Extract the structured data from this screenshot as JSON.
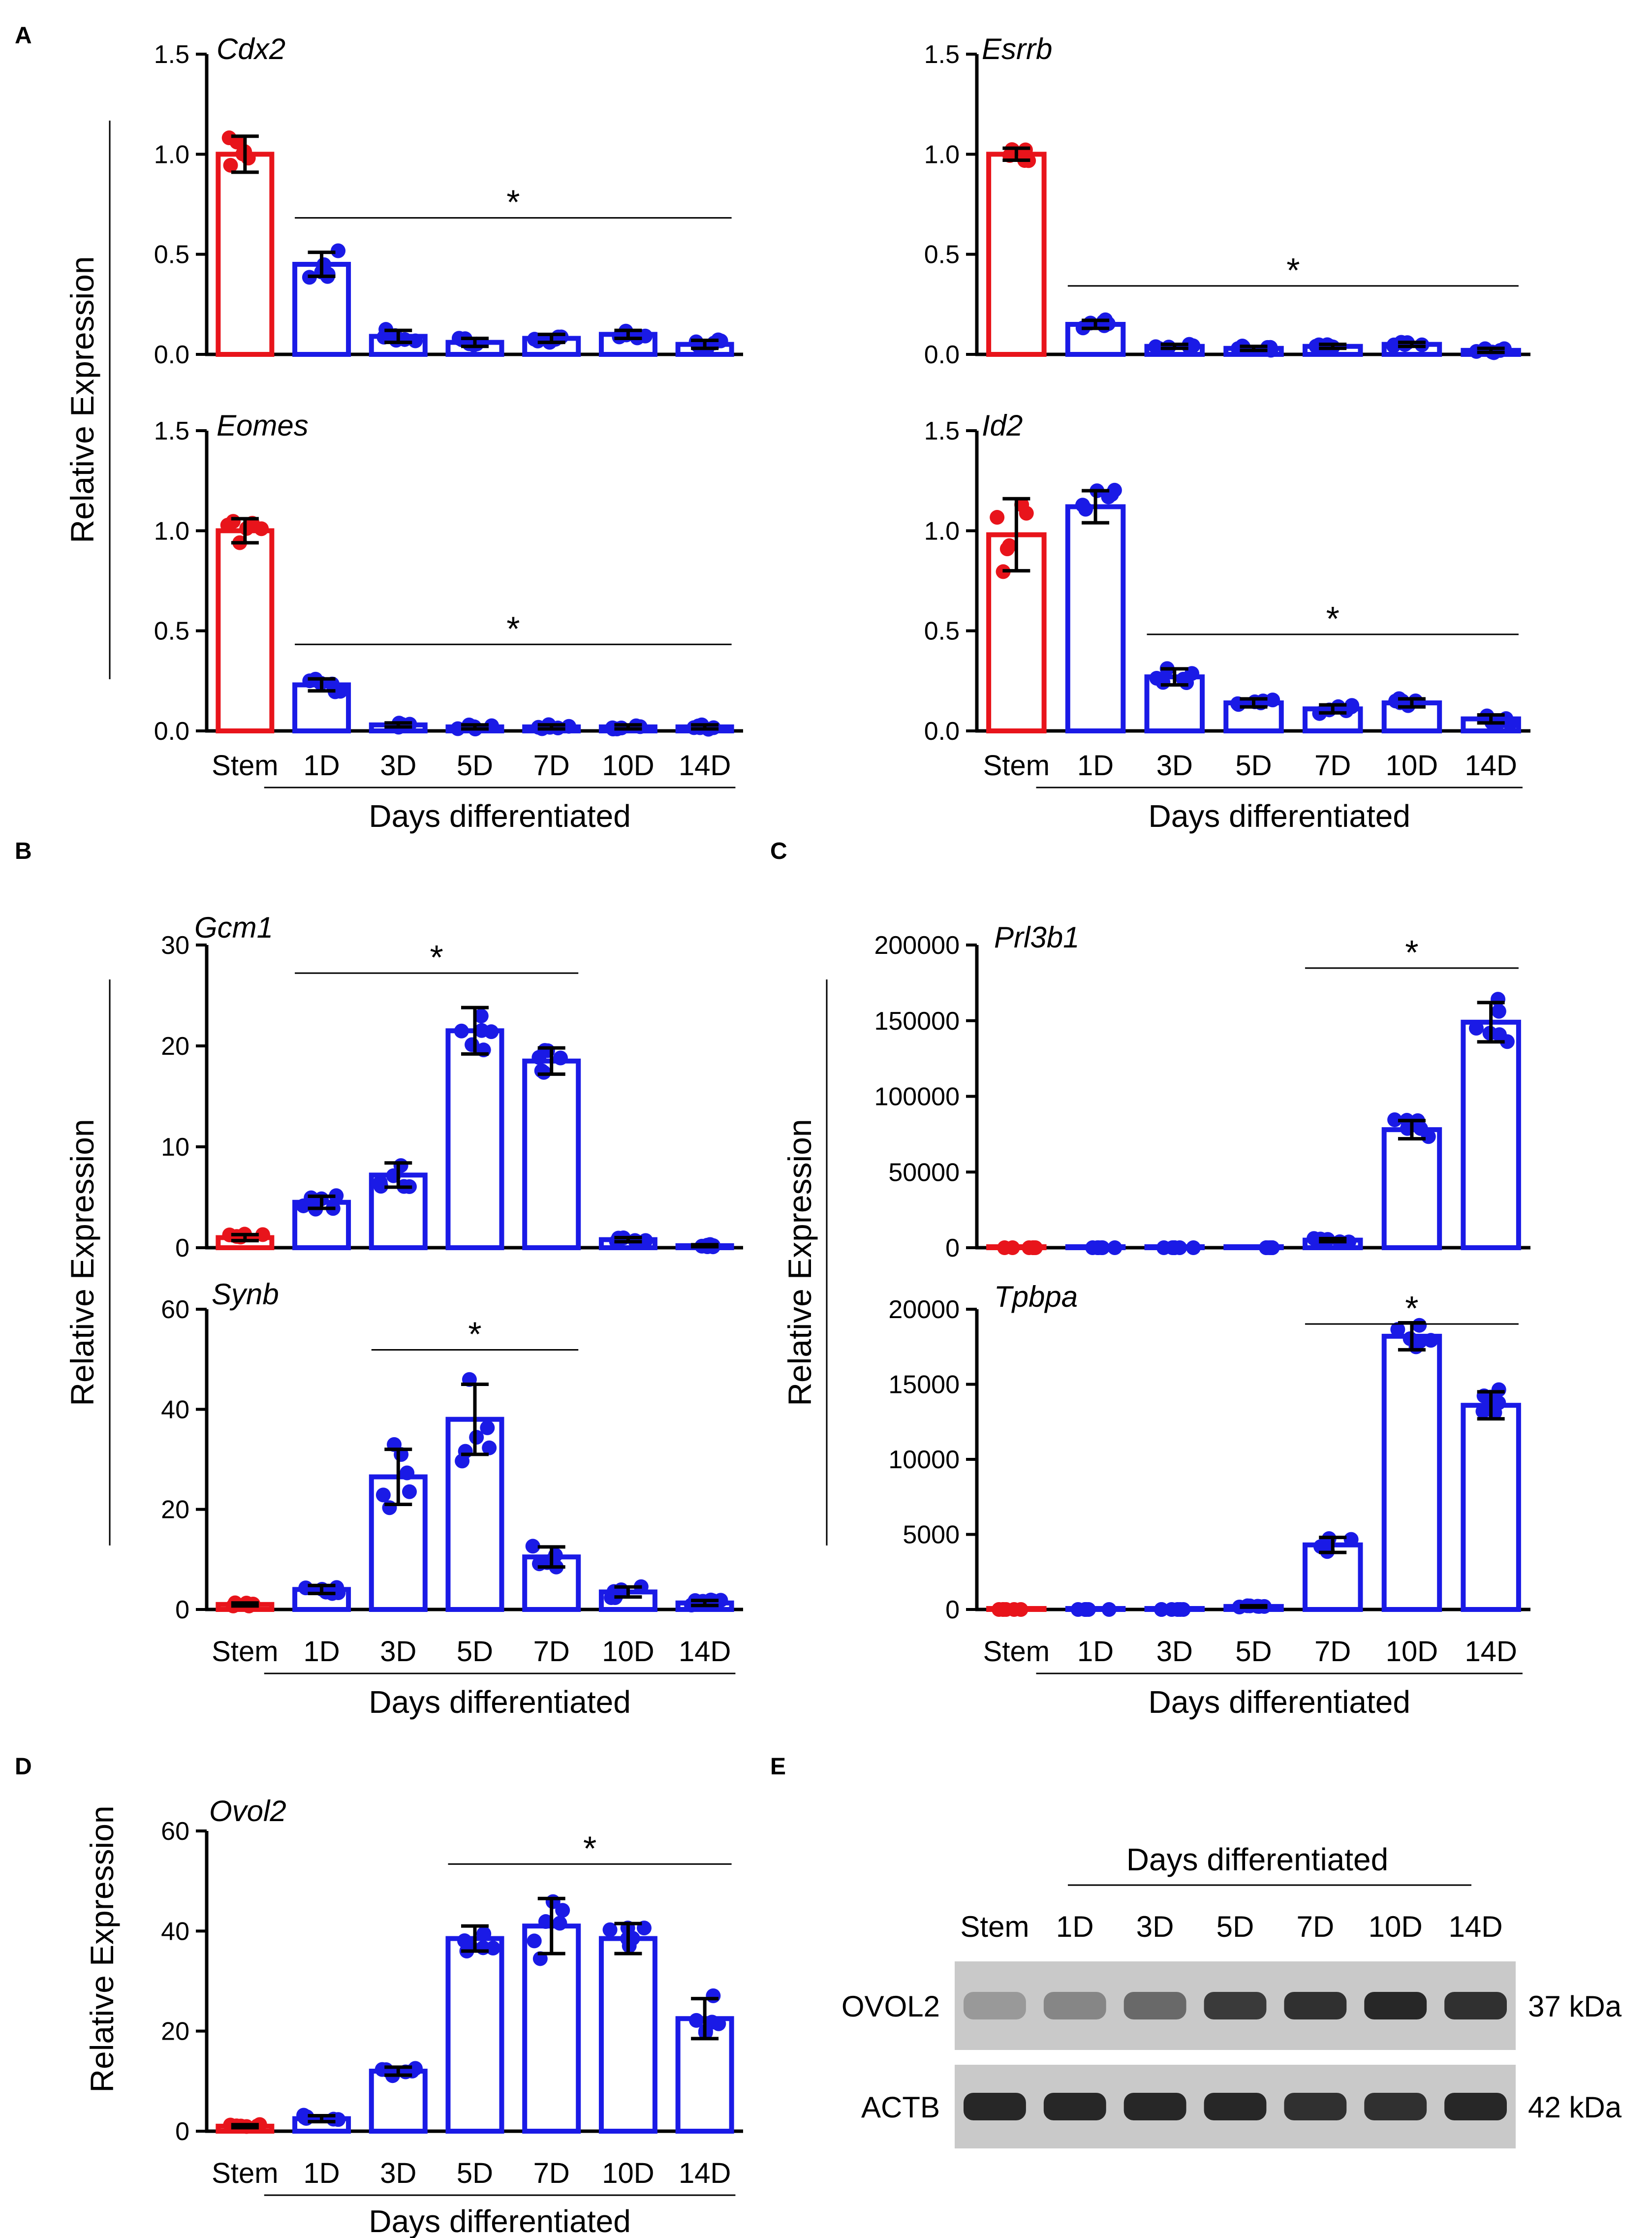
{
  "colors": {
    "stem": "#e8141b",
    "diff": "#1a1ae6",
    "axis": "#000000",
    "errorbar": "#000000"
  },
  "panel_letters": [
    "A",
    "B",
    "C",
    "D",
    "E"
  ],
  "common": {
    "ylabel": "Relative Expression",
    "xlabel": "Days differentiated",
    "categories": [
      "Stem",
      "1D",
      "3D",
      "5D",
      "7D",
      "10D",
      "14D"
    ],
    "sig_mark": "*"
  },
  "chart_data": [
    {
      "id": "cdx2",
      "type": "bar",
      "title": "Cdx2",
      "categories": [
        "Stem",
        "1D",
        "3D",
        "5D",
        "7D",
        "10D",
        "14D"
      ],
      "values": [
        1.0,
        0.45,
        0.09,
        0.06,
        0.08,
        0.1,
        0.05
      ],
      "errors": [
        0.09,
        0.06,
        0.03,
        0.02,
        0.02,
        0.02,
        0.02
      ],
      "ylim": [
        0,
        1.5
      ],
      "yticks": [
        "0.0",
        "0.5",
        "1.0",
        "1.5"
      ],
      "ytick_values": [
        0,
        0.5,
        1.0,
        1.5
      ],
      "sig": {
        "from": 1,
        "to": 6,
        "label": "*"
      }
    },
    {
      "id": "esrrb",
      "type": "bar",
      "title": "Esrrb",
      "categories": [
        "Stem",
        "1D",
        "3D",
        "5D",
        "7D",
        "10D",
        "14D"
      ],
      "values": [
        1.0,
        0.15,
        0.04,
        0.03,
        0.04,
        0.05,
        0.02
      ],
      "errors": [
        0.03,
        0.02,
        0.01,
        0.01,
        0.01,
        0.01,
        0.01
      ],
      "ylim": [
        0,
        1.5
      ],
      "yticks": [
        "0.0",
        "0.5",
        "1.0",
        "1.5"
      ],
      "ytick_values": [
        0,
        0.5,
        1.0,
        1.5
      ],
      "sig": {
        "from": 1,
        "to": 6,
        "label": "*"
      }
    },
    {
      "id": "eomes",
      "type": "bar",
      "title": "Eomes",
      "categories": [
        "Stem",
        "1D",
        "3D",
        "5D",
        "7D",
        "10D",
        "14D"
      ],
      "values": [
        1.0,
        0.23,
        0.03,
        0.02,
        0.02,
        0.02,
        0.02
      ],
      "errors": [
        0.06,
        0.03,
        0.01,
        0.01,
        0.01,
        0.01,
        0.01
      ],
      "ylim": [
        0,
        1.5
      ],
      "yticks": [
        "0.0",
        "0.5",
        "1.0",
        "1.5"
      ],
      "ytick_values": [
        0,
        0.5,
        1.0,
        1.5
      ],
      "sig": {
        "from": 1,
        "to": 6,
        "label": "*"
      }
    },
    {
      "id": "id2",
      "type": "bar",
      "title": "Id2",
      "categories": [
        "Stem",
        "1D",
        "3D",
        "5D",
        "7D",
        "10D",
        "14D"
      ],
      "values": [
        0.98,
        1.12,
        0.27,
        0.14,
        0.11,
        0.14,
        0.06
      ],
      "errors": [
        0.18,
        0.08,
        0.04,
        0.02,
        0.02,
        0.02,
        0.02
      ],
      "ylim": [
        0,
        1.5
      ],
      "yticks": [
        "0.0",
        "0.5",
        "1.0",
        "1.5"
      ],
      "ytick_values": [
        0,
        0.5,
        1.0,
        1.5
      ],
      "sig": {
        "from": 2,
        "to": 6,
        "label": "*"
      }
    },
    {
      "id": "gcm1",
      "type": "bar",
      "title": "Gcm1",
      "categories": [
        "Stem",
        "1D",
        "3D",
        "5D",
        "7D",
        "10D",
        "14D"
      ],
      "values": [
        1.0,
        4.5,
        7.2,
        21.5,
        18.5,
        0.8,
        0.2
      ],
      "errors": [
        0.3,
        0.6,
        1.2,
        2.3,
        1.3,
        0.2,
        0.1
      ],
      "ylim": [
        0,
        30
      ],
      "yticks": [
        "0",
        "10",
        "20",
        "30"
      ],
      "ytick_values": [
        0,
        10,
        20,
        30
      ],
      "sig": {
        "from": 1,
        "to": 4,
        "label": "*"
      }
    },
    {
      "id": "synb",
      "type": "bar",
      "title": "Synb",
      "categories": [
        "Stem",
        "1D",
        "3D",
        "5D",
        "7D",
        "10D",
        "14D"
      ],
      "values": [
        1.0,
        4.0,
        26.5,
        38.0,
        10.5,
        3.5,
        1.3
      ],
      "errors": [
        0.3,
        0.8,
        5.5,
        7.0,
        2.0,
        1.0,
        0.5
      ],
      "ylim": [
        0,
        60
      ],
      "yticks": [
        "0",
        "20",
        "40",
        "60"
      ],
      "ytick_values": [
        0,
        20,
        40,
        60
      ],
      "sig": {
        "from": 2,
        "to": 4,
        "label": "*"
      }
    },
    {
      "id": "prl3b1",
      "type": "bar",
      "title": "Prl3b1",
      "categories": [
        "Stem",
        "1D",
        "3D",
        "5D",
        "7D",
        "10D",
        "14D"
      ],
      "values": [
        1,
        1,
        1,
        1,
        5000,
        78000,
        149000
      ],
      "errors": [
        0,
        0,
        0,
        0,
        1000,
        6000,
        13000
      ],
      "ylim": [
        0,
        200000
      ],
      "yticks": [
        "0",
        "50000",
        "100000",
        "150000",
        "200000"
      ],
      "ytick_values": [
        0,
        50000,
        100000,
        150000,
        200000
      ],
      "sig": {
        "from": 4,
        "to": 6,
        "label": "*"
      }
    },
    {
      "id": "tpbpa",
      "type": "bar",
      "title": "Tpbpa",
      "categories": [
        "Stem",
        "1D",
        "3D",
        "5D",
        "7D",
        "10D",
        "14D"
      ],
      "values": [
        1,
        1,
        1,
        200,
        4300,
        18200,
        13600
      ],
      "errors": [
        0,
        0,
        0,
        50,
        500,
        900,
        900
      ],
      "ylim": [
        0,
        20000
      ],
      "yticks": [
        "0",
        "5000",
        "10000",
        "15000",
        "20000"
      ],
      "ytick_values": [
        0,
        5000,
        10000,
        15000,
        20000
      ],
      "sig": {
        "from": 4,
        "to": 6,
        "label": "*"
      }
    },
    {
      "id": "ovol2",
      "type": "bar",
      "title": "Ovol2",
      "categories": [
        "Stem",
        "1D",
        "3D",
        "5D",
        "7D",
        "10D",
        "14D"
      ],
      "values": [
        1.0,
        2.5,
        12.0,
        38.5,
        41.0,
        38.5,
        22.5
      ],
      "errors": [
        0.3,
        0.6,
        0.8,
        2.5,
        5.5,
        3.0,
        4.0
      ],
      "ylim": [
        0,
        60
      ],
      "yticks": [
        "0",
        "20",
        "40",
        "60"
      ],
      "ytick_values": [
        0,
        20,
        40,
        60
      ],
      "sig": {
        "from": 3,
        "to": 6,
        "label": "*"
      }
    }
  ],
  "western": {
    "header": "Days differentiated",
    "lanes": [
      "Stem",
      "1D",
      "3D",
      "5D",
      "7D",
      "10D",
      "14D"
    ],
    "rows": [
      {
        "protein": "OVOL2",
        "size": "37 kDa",
        "intensities": [
          0.25,
          0.35,
          0.5,
          0.75,
          0.8,
          0.85,
          0.8
        ]
      },
      {
        "protein": "ACTB",
        "size": "42 kDa",
        "intensities": [
          0.85,
          0.85,
          0.85,
          0.85,
          0.8,
          0.8,
          0.85
        ]
      }
    ]
  }
}
